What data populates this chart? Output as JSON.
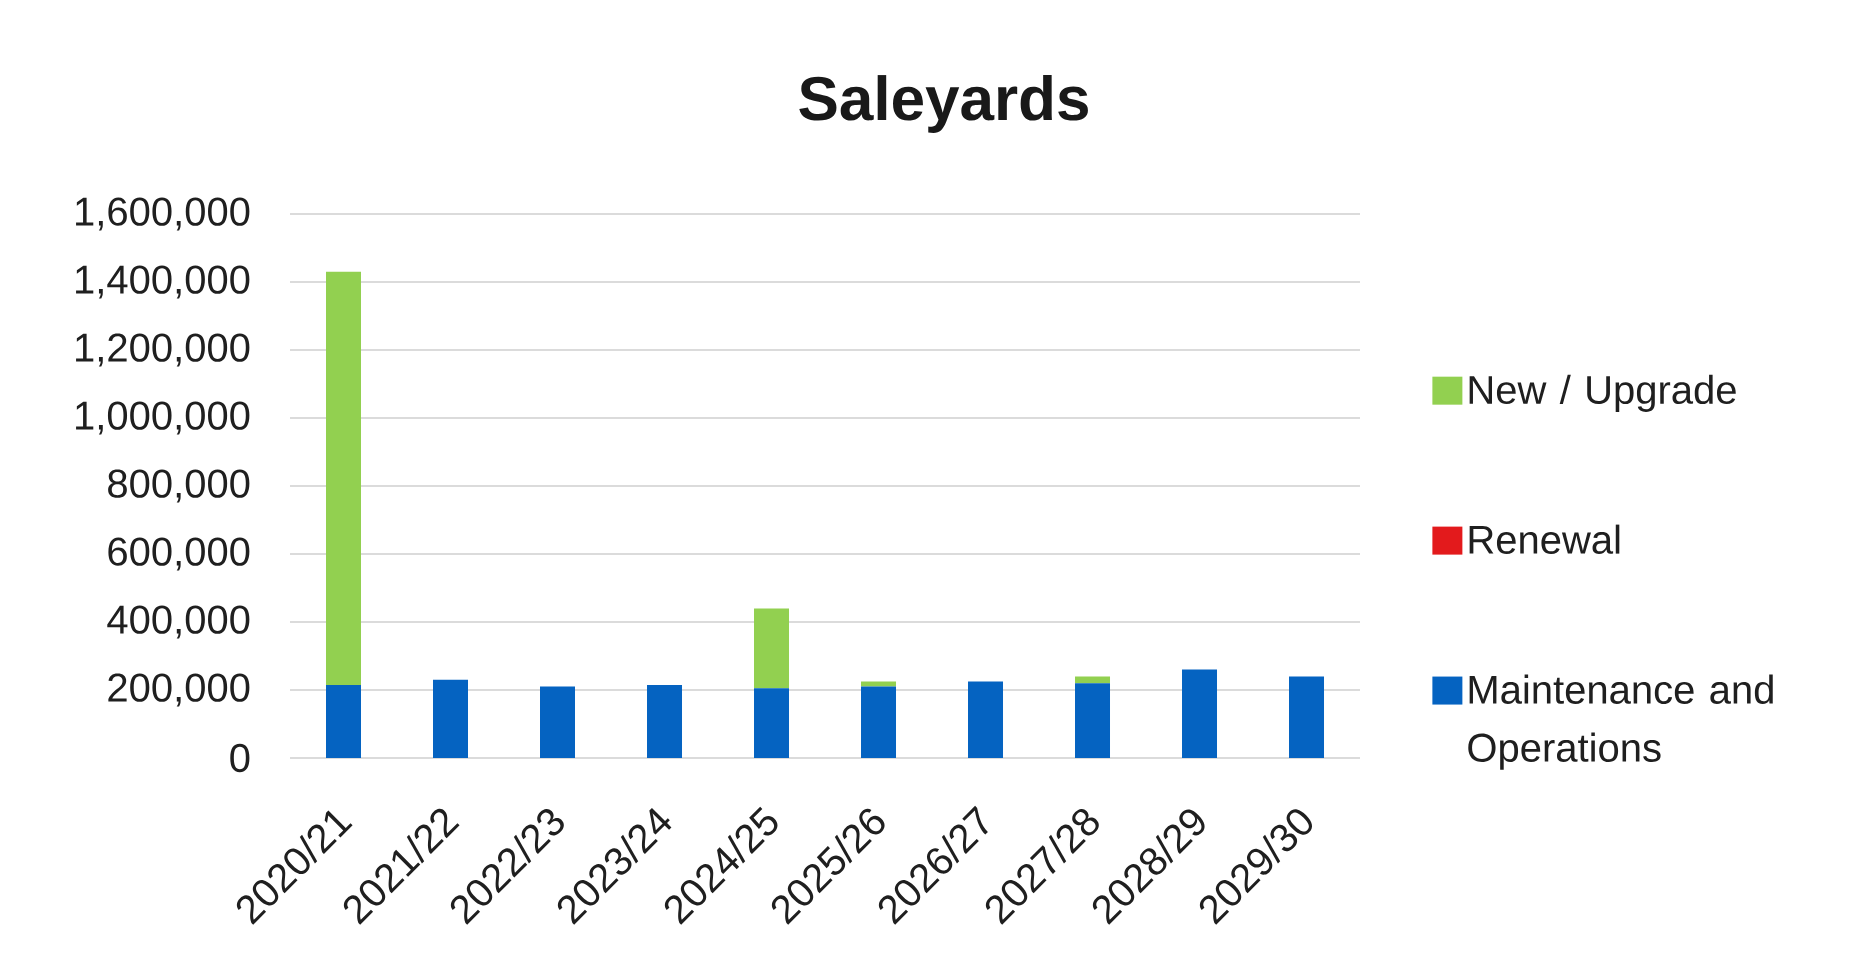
{
  "chart_data": {
    "type": "bar",
    "title": "Saleyards",
    "categories": [
      "2020/21",
      "2021/22",
      "2022/23",
      "2023/24",
      "2024/25",
      "2025/26",
      "2026/27",
      "2027/28",
      "2028/29",
      "2029/30"
    ],
    "series": [
      {
        "name": "Maintenance and Operations",
        "color": "#0563c1",
        "values": [
          215000,
          230000,
          210000,
          215000,
          205000,
          210000,
          225000,
          220000,
          260000,
          240000
        ]
      },
      {
        "name": "Renewal",
        "color": "#e31a1c",
        "values": [
          0,
          0,
          0,
          0,
          0,
          0,
          0,
          0,
          0,
          0
        ]
      },
      {
        "name": "New / Upgrade",
        "color": "#92d050",
        "values": [
          1215000,
          0,
          0,
          0,
          235000,
          15000,
          0,
          20000,
          0,
          0
        ]
      }
    ],
    "stacked": true,
    "ylim": [
      0,
      1600000
    ],
    "yticks": [
      {
        "value": 0,
        "label": "0"
      },
      {
        "value": 200000,
        "label": "200,000"
      },
      {
        "value": 400000,
        "label": "400,000"
      },
      {
        "value": 600000,
        "label": "600,000"
      },
      {
        "value": 800000,
        "label": "800,000"
      },
      {
        "value": 1000000,
        "label": "1,000,000"
      },
      {
        "value": 1200000,
        "label": "1,200,000"
      },
      {
        "value": 1400000,
        "label": "1,400,000"
      },
      {
        "value": 1600000,
        "label": "1,600,000"
      }
    ],
    "grid": "y",
    "legend": "right"
  }
}
